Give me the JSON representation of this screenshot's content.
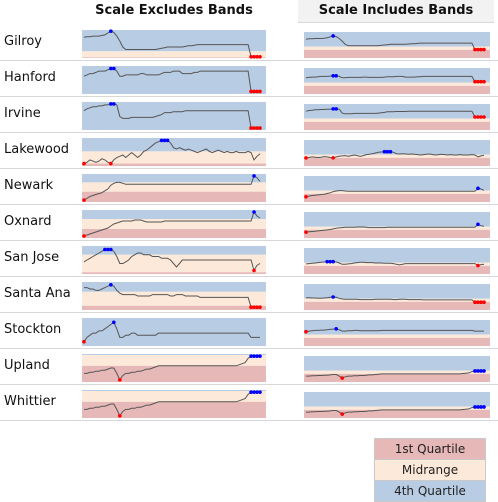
{
  "headers": {
    "left": "Scale Excludes Bands",
    "right": "Scale Includes Bands"
  },
  "colors": {
    "q1": "#e6b8b7",
    "mid": "#fde9d9",
    "q4": "#b8cce4",
    "line": "#555555",
    "high": "#0000ff",
    "low": "#ff0000"
  },
  "legend": [
    {
      "label": "1st Quartile",
      "color": "#e6b8b7"
    },
    {
      "label": "Midrange",
      "color": "#fde9d9"
    },
    {
      "label": "4th Quartile",
      "color": "#b8cce4"
    }
  ],
  "chart_data": [
    {
      "type": "line",
      "city": "Gilroy",
      "bands": {
        "q1_max": 45,
        "q4_min": 55,
        "full_min": 20,
        "full_max": 100
      },
      "values": [
        78,
        79,
        79,
        80,
        80,
        80,
        81,
        82,
        85,
        88,
        86,
        80,
        72,
        62,
        58,
        58,
        58,
        58,
        58,
        58,
        58,
        58,
        58,
        58,
        58,
        59,
        60,
        61,
        62,
        62,
        62,
        62,
        62,
        62,
        63,
        64,
        64,
        65,
        66,
        66,
        66,
        66,
        66,
        66,
        66,
        66,
        66,
        66,
        66,
        66,
        66,
        66,
        66,
        66,
        66,
        66,
        46,
        46,
        46,
        46
      ]
    },
    {
      "type": "line",
      "city": "Hanford",
      "bands": {
        "q1_max": 45,
        "q4_min": 55,
        "full_min": 20,
        "full_max": 100
      },
      "values": [
        70,
        71,
        72,
        72,
        73,
        74,
        74,
        74,
        75,
        76,
        76,
        74,
        70,
        70,
        71,
        71,
        71,
        71,
        71,
        72,
        72,
        71,
        71,
        71,
        71,
        71,
        72,
        73,
        73,
        73,
        74,
        74,
        74,
        72,
        72,
        72,
        72,
        73,
        73,
        74,
        74,
        74,
        74,
        74,
        74,
        74,
        74,
        74,
        74,
        74,
        74,
        74,
        74,
        74,
        74,
        74,
        58,
        58,
        58,
        58
      ]
    },
    {
      "type": "line",
      "city": "Irvine",
      "bands": {
        "q1_max": 45,
        "q4_min": 55,
        "full_min": 20,
        "full_max": 100
      },
      "values": [
        78,
        80,
        81,
        82,
        82,
        83,
        83,
        84,
        84,
        85,
        85,
        84,
        72,
        70,
        70,
        70,
        71,
        71,
        71,
        71,
        71,
        71,
        71,
        71,
        72,
        73,
        74,
        76,
        76,
        76,
        77,
        77,
        77,
        77,
        78,
        78,
        78,
        78,
        78,
        78,
        78,
        78,
        78,
        78,
        78,
        78,
        78,
        78,
        78,
        78,
        78,
        78,
        78,
        78,
        78,
        78,
        60,
        60,
        60,
        60
      ]
    },
    {
      "type": "line",
      "city": "Lakewood",
      "bands": {
        "q1_max": 45,
        "q4_min": 55,
        "full_min": 20,
        "full_max": 100
      },
      "values": [
        45,
        46,
        48,
        47,
        46,
        47,
        49,
        48,
        46,
        45,
        48,
        50,
        51,
        52,
        50,
        52,
        54,
        52,
        50,
        52,
        55,
        56,
        58,
        60,
        62,
        63,
        64,
        64,
        64,
        62,
        58,
        57,
        58,
        57,
        56,
        57,
        56,
        55,
        54,
        55,
        56,
        57,
        55,
        54,
        55,
        56,
        55,
        54,
        55,
        54,
        54,
        55,
        54,
        54,
        54,
        55,
        54,
        48,
        51,
        53
      ]
    },
    {
      "type": "line",
      "city": "Newark",
      "bands": {
        "q1_max": 45,
        "q4_min": 55,
        "full_min": 20,
        "full_max": 100
      },
      "values": [
        36,
        38,
        40,
        41,
        42,
        43,
        44,
        46,
        48,
        52,
        54,
        55,
        55,
        54,
        53,
        53,
        53,
        53,
        53,
        53,
        53,
        53,
        53,
        53,
        53,
        53,
        53,
        53,
        53,
        53,
        53,
        53,
        53,
        53,
        53,
        53,
        53,
        53,
        53,
        53,
        53,
        53,
        53,
        53,
        53,
        53,
        53,
        53,
        53,
        53,
        53,
        53,
        53,
        53,
        53,
        53,
        53,
        62,
        60,
        56
      ]
    },
    {
      "type": "line",
      "city": "Oxnard",
      "bands": {
        "q1_max": 45,
        "q4_min": 55,
        "full_min": 20,
        "full_max": 100
      },
      "values": [
        38,
        39,
        40,
        41,
        42,
        43,
        44,
        45,
        46,
        48,
        50,
        51,
        52,
        53,
        53,
        53,
        53,
        54,
        54,
        54,
        53,
        52,
        52,
        52,
        52,
        52,
        52,
        53,
        53,
        53,
        53,
        53,
        53,
        53,
        53,
        53,
        53,
        53,
        53,
        53,
        53,
        53,
        53,
        53,
        53,
        53,
        53,
        53,
        53,
        53,
        53,
        53,
        53,
        53,
        53,
        53,
        53,
        62,
        58,
        56
      ]
    },
    {
      "type": "line",
      "city": "San Jose",
      "bands": {
        "q1_max": 45,
        "q4_min": 55,
        "full_min": 20,
        "full_max": 100
      },
      "values": [
        51,
        52,
        53,
        54,
        55,
        56,
        57,
        58,
        58,
        58,
        57,
        54,
        50,
        50,
        51,
        52,
        54,
        55,
        56,
        56,
        55,
        55,
        55,
        54,
        54,
        54,
        53,
        53,
        53,
        52,
        50,
        48,
        50,
        52,
        52,
        52,
        52,
        52,
        52,
        52,
        52,
        52,
        52,
        52,
        52,
        52,
        52,
        52,
        52,
        52,
        52,
        52,
        52,
        52,
        52,
        52,
        52,
        46,
        49,
        50
      ]
    },
    {
      "type": "line",
      "city": "Santa Ana",
      "bands": {
        "q1_max": 45,
        "q4_min": 55,
        "full_min": 20,
        "full_max": 100
      },
      "values": [
        58,
        58,
        57,
        57,
        56,
        56,
        57,
        58,
        59,
        60,
        59,
        56,
        54,
        53,
        53,
        53,
        53,
        53,
        52,
        52,
        52,
        52,
        52,
        53,
        53,
        53,
        53,
        53,
        53,
        52,
        52,
        53,
        53,
        53,
        52,
        52,
        52,
        52,
        52,
        51,
        51,
        51,
        51,
        51,
        51,
        51,
        51,
        51,
        51,
        51,
        51,
        51,
        51,
        51,
        51,
        51,
        44,
        44,
        44,
        44
      ]
    },
    {
      "type": "line",
      "city": "Stockton",
      "bands": {
        "q1_max": 45,
        "q4_min": 55,
        "full_min": 20,
        "full_max": 100
      },
      "values": [
        64,
        66,
        67,
        68,
        68,
        69,
        69,
        70,
        71,
        72,
        73,
        70,
        66,
        66,
        67,
        67,
        68,
        68,
        67,
        67,
        67,
        67,
        67,
        67,
        67,
        68,
        68,
        68,
        68,
        68,
        68,
        68,
        68,
        68,
        68,
        68,
        68,
        68,
        68,
        68,
        68,
        68,
        68,
        68,
        68,
        68,
        68,
        68,
        68,
        68,
        68,
        68,
        68,
        68,
        68,
        68,
        66,
        66,
        66,
        66
      ]
    },
    {
      "type": "line",
      "city": "Upland",
      "bands": {
        "q1_max": 45,
        "q4_min": 55,
        "full_min": 20,
        "full_max": 100
      },
      "values": [
        38,
        38,
        39,
        39,
        40,
        40,
        41,
        41,
        42,
        43,
        43,
        38,
        32,
        36,
        38,
        38,
        39,
        39,
        40,
        40,
        41,
        42,
        42,
        43,
        44,
        45,
        45,
        45,
        45,
        45,
        45,
        45,
        45,
        45,
        45,
        45,
        45,
        45,
        45,
        45,
        45,
        45,
        45,
        45,
        45,
        45,
        45,
        45,
        45,
        45,
        45,
        45,
        46,
        47,
        48,
        52,
        54,
        54,
        54,
        54
      ]
    },
    {
      "type": "line",
      "city": "Whittier",
      "bands": {
        "q1_max": 45,
        "q4_min": 55,
        "full_min": 20,
        "full_max": 100
      },
      "values": [
        38,
        38,
        39,
        39,
        40,
        40,
        41,
        41,
        42,
        43,
        43,
        38,
        32,
        36,
        38,
        38,
        39,
        39,
        40,
        40,
        41,
        42,
        42,
        43,
        44,
        45,
        45,
        45,
        45,
        45,
        45,
        45,
        45,
        45,
        45,
        45,
        45,
        45,
        45,
        45,
        45,
        45,
        45,
        45,
        45,
        45,
        45,
        45,
        45,
        45,
        45,
        45,
        46,
        47,
        48,
        52,
        54,
        54,
        54,
        54
      ]
    }
  ]
}
